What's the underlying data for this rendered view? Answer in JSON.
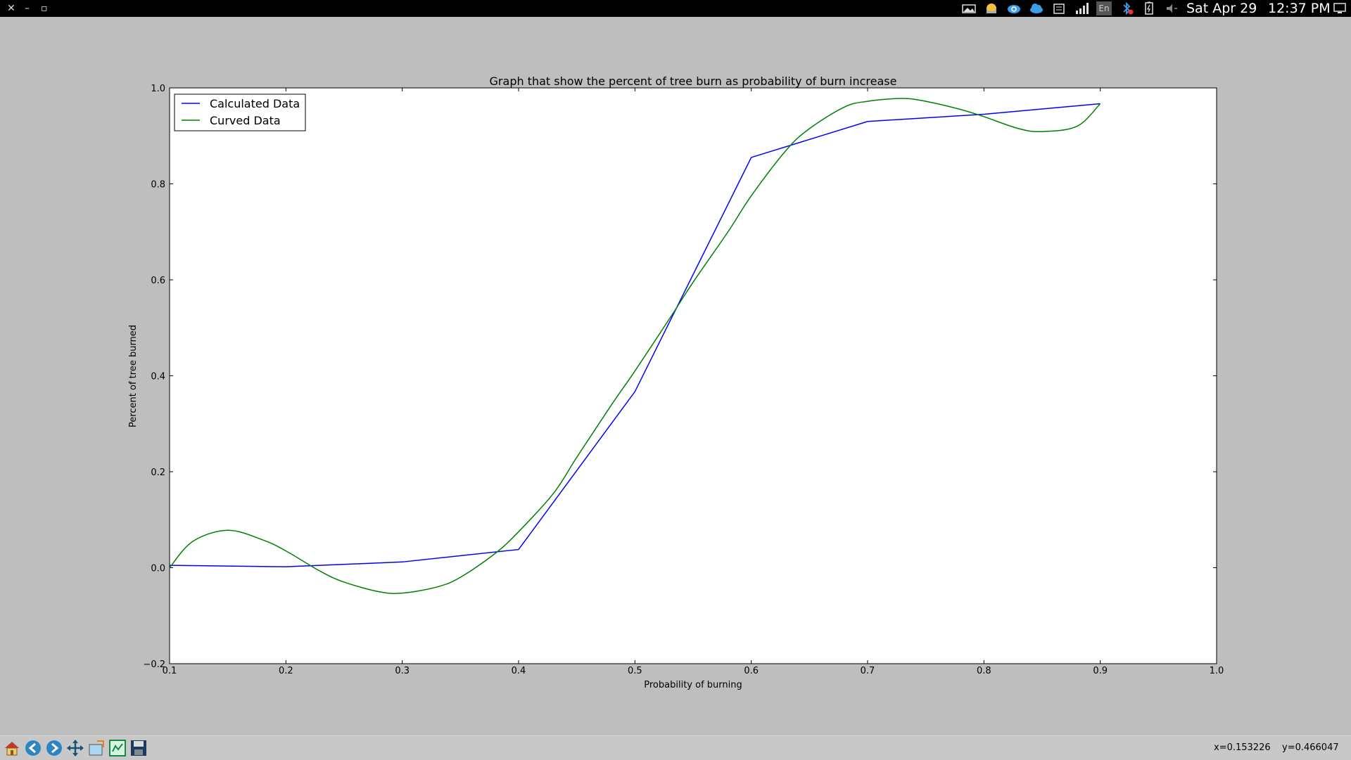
{
  "window": {
    "close_glyph": "✕",
    "minimize_glyph": "–",
    "maximize_glyph": "▫"
  },
  "tray": {
    "icons": [
      "photos-icon",
      "weather-icon",
      "cloud-sync-icon",
      "cloud-icon",
      "clipboard-icon",
      "signal-icon",
      "keyboard-layout-icon",
      "bluetooth-icon",
      "battery-icon",
      "volume-icon",
      "display-icon"
    ],
    "keyboard_layout": "En",
    "date": "Sat Apr 29",
    "time": "12:37 PM"
  },
  "status": {
    "x_readout": "x=0.153226",
    "y_readout": "y=0.466047"
  },
  "toolbar": {
    "buttons": [
      "home-button",
      "back-button",
      "forward-button",
      "pan-button",
      "zoom-button",
      "configure-subplots-button",
      "save-button"
    ]
  },
  "colors": {
    "calculated": "#0000ff",
    "curved": "#008000"
  },
  "chart_data": {
    "type": "line",
    "title": "Graph that show the percent of tree burn as probability of burn increase",
    "xlabel": "Probability of burning",
    "ylabel": "Percent of tree burned",
    "xlim": [
      0.1,
      1.0
    ],
    "ylim": [
      -0.2,
      1.0
    ],
    "xticks": [
      "0.1",
      "0.2",
      "0.3",
      "0.4",
      "0.5",
      "0.6",
      "0.7",
      "0.8",
      "0.9",
      "1.0"
    ],
    "yticks": [
      "−0.2",
      "0.0",
      "0.2",
      "0.4",
      "0.6",
      "0.8",
      "1.0"
    ],
    "legend_position": "top-left",
    "series": [
      {
        "name": "Calculated Data",
        "x": [
          0.1,
          0.2,
          0.3,
          0.4,
          0.5,
          0.6,
          0.7,
          0.8,
          0.9
        ],
        "y": [
          0.005,
          0.002,
          0.012,
          0.038,
          0.367,
          0.855,
          0.93,
          0.945,
          0.967
        ]
      },
      {
        "name": "Curved Data",
        "x": [
          0.1,
          0.12,
          0.15,
          0.18,
          0.2,
          0.23,
          0.25,
          0.28,
          0.3,
          0.33,
          0.35,
          0.38,
          0.4,
          0.43,
          0.45,
          0.48,
          0.5,
          0.53,
          0.55,
          0.58,
          0.6,
          0.63,
          0.65,
          0.68,
          0.7,
          0.73,
          0.75,
          0.78,
          0.8,
          0.83,
          0.85,
          0.88,
          0.9
        ],
        "y": [
          0.0,
          0.055,
          0.078,
          0.058,
          0.035,
          -0.008,
          -0.03,
          -0.05,
          -0.053,
          -0.04,
          -0.02,
          0.03,
          0.075,
          0.155,
          0.23,
          0.34,
          0.41,
          0.52,
          0.595,
          0.7,
          0.775,
          0.87,
          0.915,
          0.96,
          0.972,
          0.978,
          0.972,
          0.955,
          0.94,
          0.915,
          0.909,
          0.92,
          0.967
        ]
      }
    ]
  }
}
